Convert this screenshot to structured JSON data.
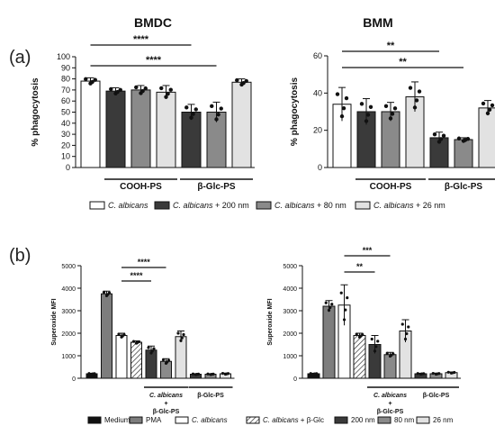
{
  "panel_labels": [
    "(a)",
    "(b)"
  ],
  "legend_a": [
    {
      "label": "C. albicans",
      "color": "#ffffff"
    },
    {
      "label": "C. albicans + 200 nm",
      "color": "#3a3a3a"
    },
    {
      "label": "C. albicans + 80 nm",
      "color": "#8a8a8a"
    },
    {
      "label": "C. albicans + 26 nm",
      "color": "#e2e2e2"
    }
  ],
  "legend_b": [
    {
      "label": "Medium",
      "color": "#111111",
      "hatch": false
    },
    {
      "label": "PMA",
      "color": "#7d7d7d",
      "hatch": false
    },
    {
      "label": "C. albicans",
      "color": "#ffffff",
      "hatch": false
    },
    {
      "label": "C. albicans + β-Glc",
      "color": "#ffffff",
      "hatch": true
    },
    {
      "label": "200 nm",
      "color": "#3a3a3a",
      "hatch": false
    },
    {
      "label": "80 nm",
      "color": "#8a8a8a",
      "hatch": false
    },
    {
      "label": "26 nm",
      "color": "#e2e2e2",
      "hatch": false
    }
  ],
  "chart_data": [
    {
      "type": "bar",
      "title": "BMDC",
      "ylabel": "% phagocytosis",
      "ylim": [
        0,
        100
      ],
      "yticks": [
        0,
        10,
        20,
        30,
        40,
        50,
        60,
        70,
        80,
        90,
        100
      ],
      "values": [
        78,
        69,
        70,
        68,
        50,
        50,
        77
      ],
      "errors": [
        3,
        3,
        4,
        6,
        7,
        9,
        3
      ],
      "colors": [
        "#ffffff",
        "#3a3a3a",
        "#8a8a8a",
        "#e2e2e2",
        "#3a3a3a",
        "#8a8a8a",
        "#e2e2e2"
      ],
      "groups": [
        {
          "label": "COOH-PS",
          "from": 1,
          "to": 3
        },
        {
          "label": "β-Glc-PS",
          "from": 4,
          "to": 6
        }
      ],
      "significance": [
        {
          "label": "****",
          "from": 0,
          "to": 4
        },
        {
          "label": "****",
          "from": 0,
          "to": 5
        }
      ]
    },
    {
      "type": "bar",
      "title": "BMM",
      "ylabel": "% phagocytosis",
      "ylim": [
        0,
        60
      ],
      "yticks": [
        0,
        20,
        40,
        60
      ],
      "values": [
        34,
        30,
        30,
        38,
        16,
        15,
        32
      ],
      "errors": [
        9,
        7,
        5,
        8,
        3,
        1,
        4
      ],
      "colors": [
        "#ffffff",
        "#3a3a3a",
        "#8a8a8a",
        "#e2e2e2",
        "#3a3a3a",
        "#8a8a8a",
        "#e2e2e2"
      ],
      "groups": [
        {
          "label": "COOH-PS",
          "from": 1,
          "to": 3
        },
        {
          "label": "β-Glc-PS",
          "from": 4,
          "to": 6
        }
      ],
      "significance": [
        {
          "label": "**",
          "from": 0,
          "to": 4
        },
        {
          "label": "**",
          "from": 0,
          "to": 5
        }
      ]
    },
    {
      "type": "bar",
      "ylabel": "Superoxide MFI",
      "ylim": [
        0,
        5000
      ],
      "yticks": [
        0,
        1000,
        2000,
        3000,
        4000,
        5000
      ],
      "values": [
        200,
        3750,
        1900,
        1600,
        1250,
        750,
        1850,
        180,
        180,
        200
      ],
      "errors": [
        20,
        120,
        100,
        60,
        180,
        120,
        250,
        20,
        20,
        30
      ],
      "colors": [
        "#111111",
        "#7d7d7d",
        "#ffffff",
        "#ffffff",
        "#3a3a3a",
        "#8a8a8a",
        "#e2e2e2",
        "#3a3a3a",
        "#8a8a8a",
        "#e2e2e2"
      ],
      "hatch": [
        false,
        false,
        false,
        true,
        false,
        false,
        false,
        false,
        false,
        false
      ],
      "groups": [
        {
          "label": "C. albicans\n+\nβ-Glc-PS",
          "from": 4,
          "to": 6
        },
        {
          "label": "β-Glc-PS",
          "from": 7,
          "to": 9
        }
      ],
      "significance": [
        {
          "label": "****",
          "from": 2,
          "to": 5
        },
        {
          "label": "****",
          "from": 2,
          "to": 4
        }
      ]
    },
    {
      "type": "bar",
      "ylabel": "Superoxide MFI",
      "ylim": [
        0,
        5000
      ],
      "yticks": [
        0,
        1000,
        2000,
        3000,
        4000,
        5000
      ],
      "values": [
        200,
        3200,
        3250,
        1900,
        1500,
        1050,
        2100,
        200,
        200,
        250
      ],
      "errors": [
        20,
        250,
        900,
        100,
        400,
        100,
        500,
        20,
        30,
        30
      ],
      "colors": [
        "#111111",
        "#7d7d7d",
        "#ffffff",
        "#ffffff",
        "#3a3a3a",
        "#8a8a8a",
        "#e2e2e2",
        "#3a3a3a",
        "#8a8a8a",
        "#e2e2e2"
      ],
      "hatch": [
        false,
        false,
        false,
        true,
        false,
        false,
        false,
        false,
        false,
        false
      ],
      "groups": [
        {
          "label": "C. albicans\n+\nβ-Glc-PS",
          "from": 4,
          "to": 6
        },
        {
          "label": "β-Glc-PS",
          "from": 7,
          "to": 9
        }
      ],
      "significance": [
        {
          "label": "***",
          "from": 2,
          "to": 5
        },
        {
          "label": "**",
          "from": 2,
          "to": 4
        }
      ]
    }
  ]
}
